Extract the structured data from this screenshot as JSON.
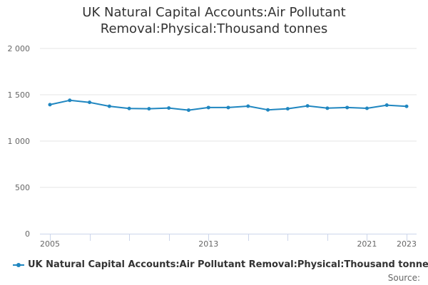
{
  "chart_data": {
    "type": "line",
    "title_lines": [
      "UK Natural Capital Accounts:Air Pollutant",
      "Removal:Physical:Thousand tonnes"
    ],
    "xlabel": "",
    "ylabel": "",
    "x": [
      2005,
      2006,
      2007,
      2008,
      2009,
      2010,
      2011,
      2012,
      2013,
      2014,
      2015,
      2016,
      2017,
      2018,
      2019,
      2020,
      2021,
      2022,
      2023
    ],
    "series": [
      {
        "name": "UK Natural Capital Accounts:Air Pollutant Removal:Physical:Thousand tonnes",
        "color": "#1f86c0",
        "values": [
          1393,
          1440,
          1418,
          1376,
          1352,
          1349,
          1357,
          1334,
          1362,
          1362,
          1377,
          1337,
          1349,
          1380,
          1355,
          1362,
          1354,
          1388,
          1375
        ]
      }
    ],
    "ylim": [
      0,
      2000
    ],
    "yticks": [
      0,
      500,
      1000,
      1500,
      2000
    ],
    "ytick_labels": [
      "0",
      "500",
      "1 000",
      "1 500",
      "2 000"
    ],
    "xtick_labels": [
      {
        "x": 2005,
        "label": "2005"
      },
      {
        "x": 2013,
        "label": "2013"
      },
      {
        "x": 2021,
        "label": "2021"
      },
      {
        "x": 2023,
        "label": "2023"
      }
    ],
    "grid": true,
    "legend_position": "bottom-left"
  },
  "credits": "Source:"
}
